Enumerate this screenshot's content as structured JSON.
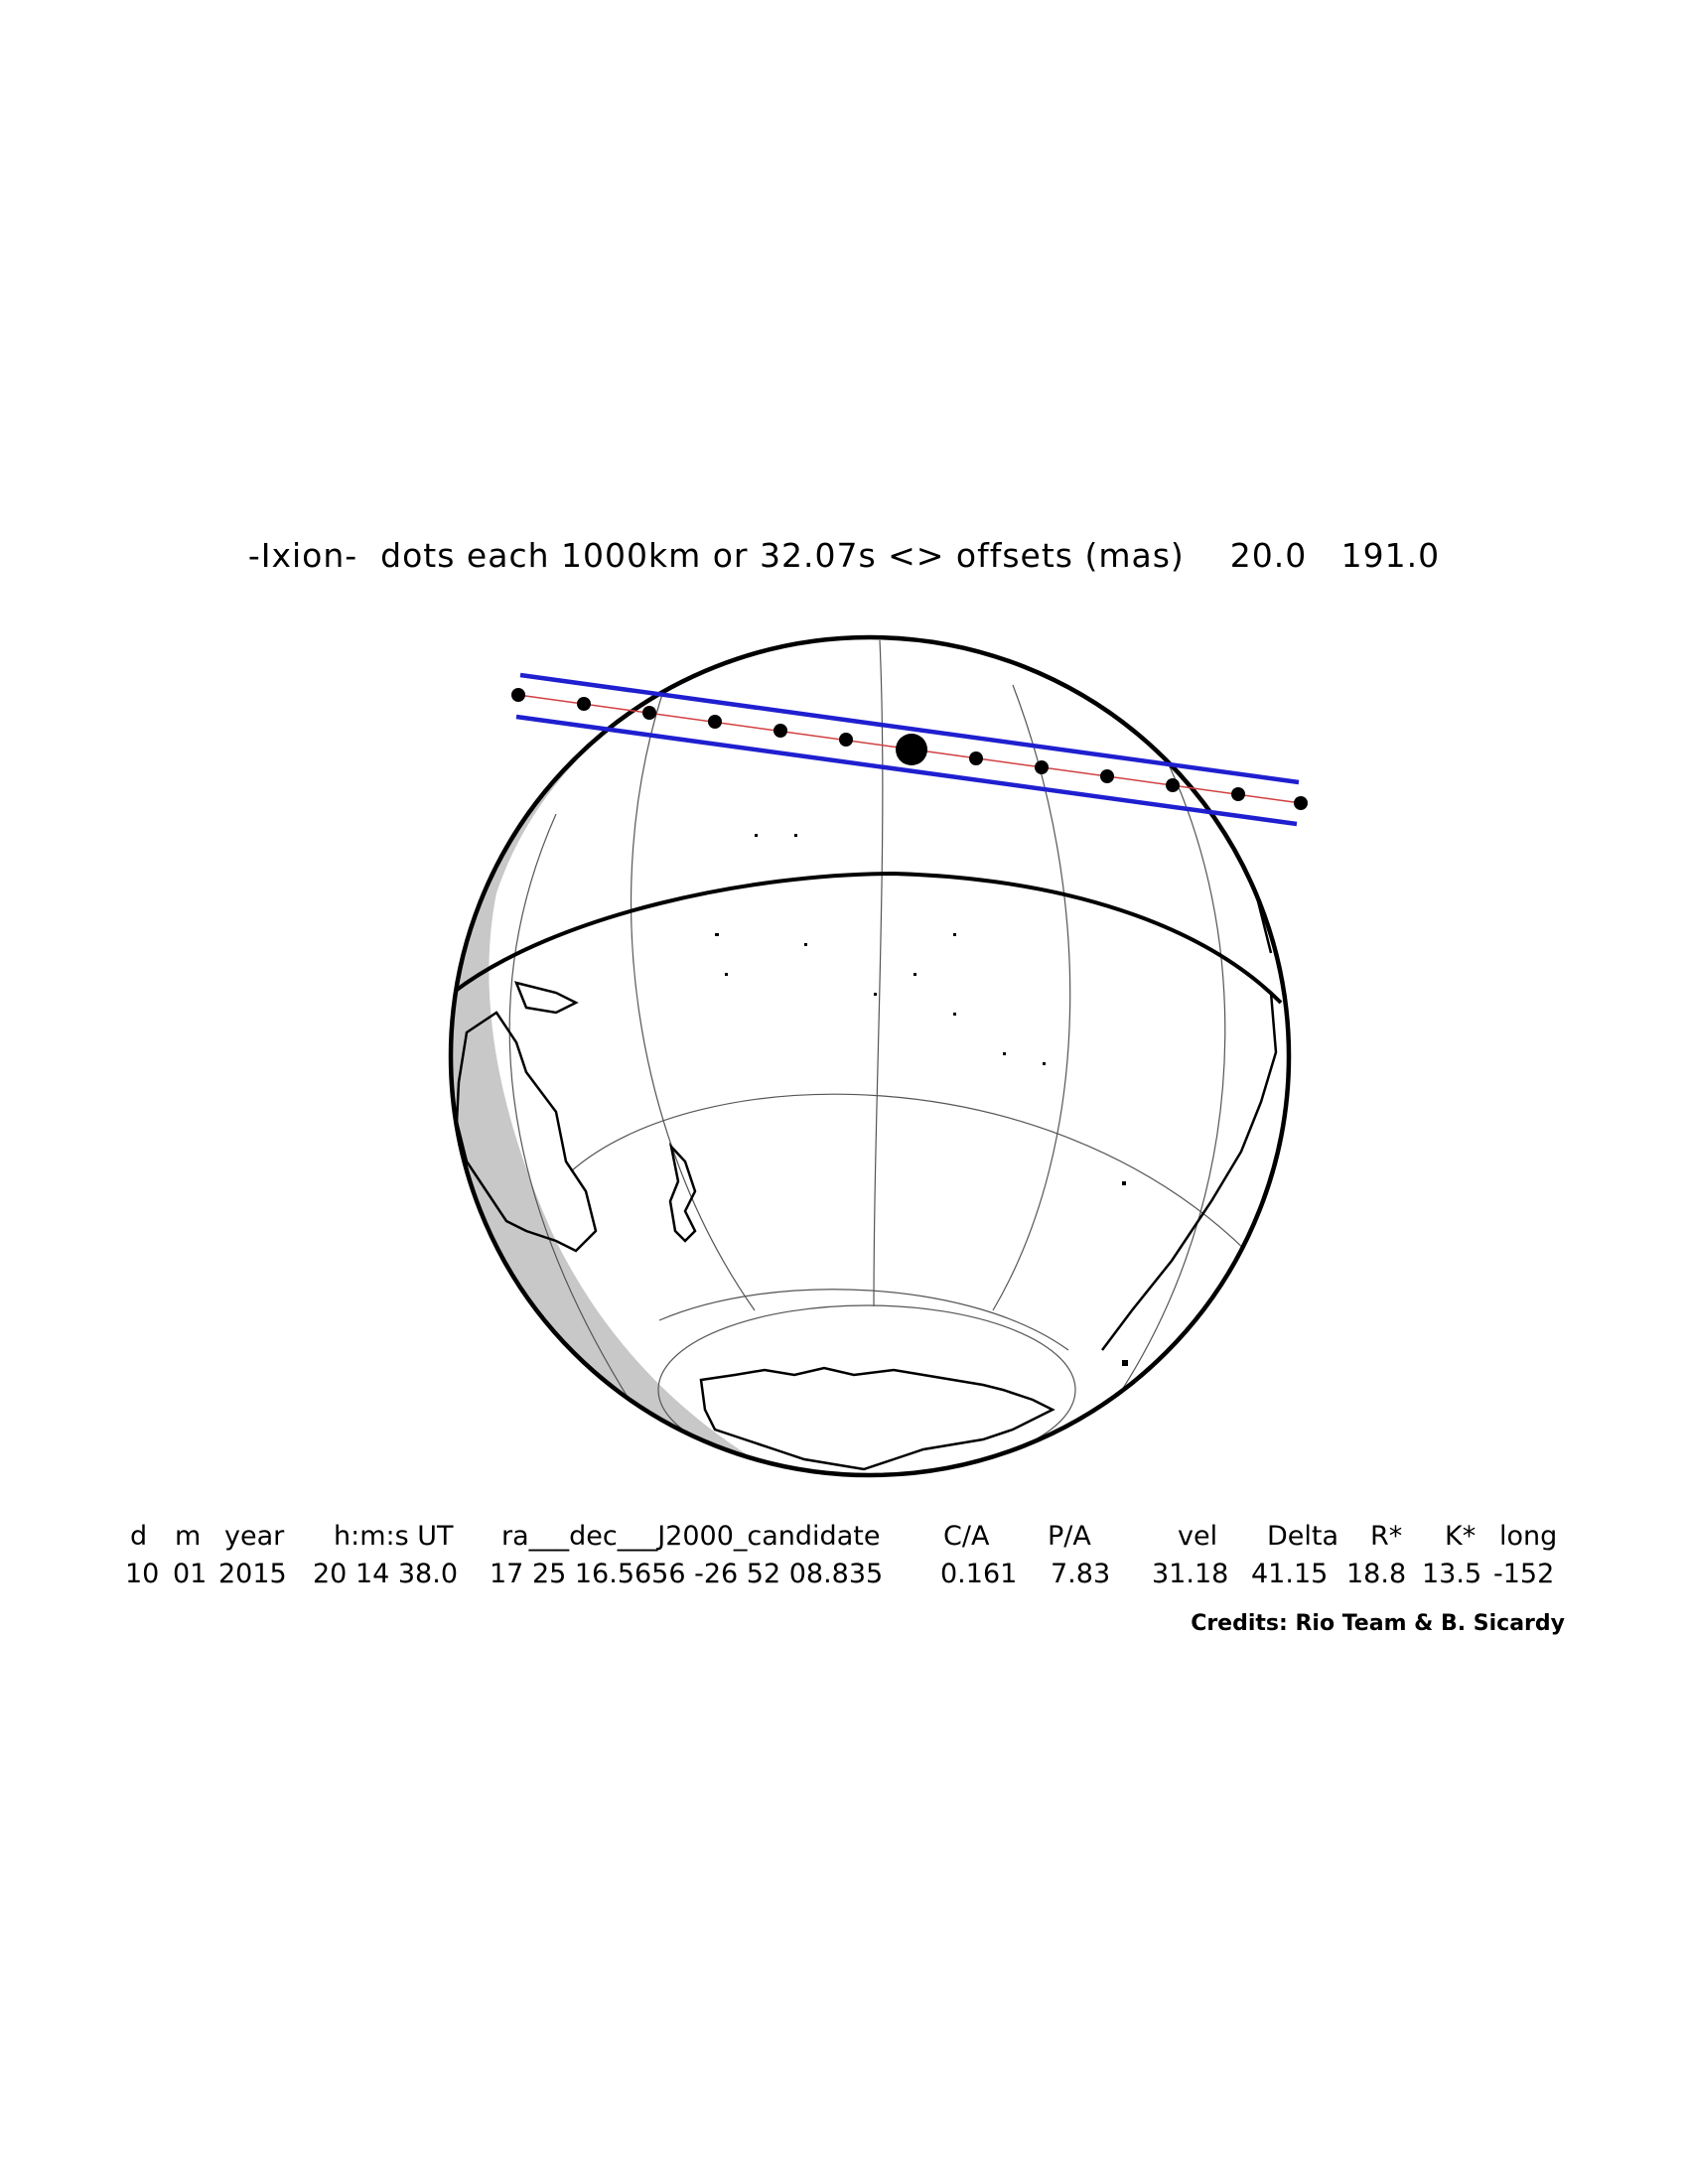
{
  "title": "-Ixion-  dots each 1000km or 32.07s <> offsets (mas)    20.0   191.0",
  "table": {
    "headers": [
      "d",
      "m",
      "year",
      "h:m:s UT",
      "ra___dec___J2000_candidate",
      "C/A",
      "P/A",
      "vel",
      "Delta",
      "R*",
      "K*",
      "long"
    ],
    "values": [
      "10",
      "01",
      "2015",
      "20 14 38.0",
      "17 25 16.5656 -26 52 08.835",
      "0.161",
      "7.83",
      "31.18",
      "41.15",
      "18.8",
      "13.5",
      "-152"
    ]
  },
  "credits": "Credits: Rio Team & B. Sicardy",
  "colors": {
    "shadow_limits": "#1f1fd0",
    "centrality": "#d04040",
    "night": "#c8c8c8"
  }
}
